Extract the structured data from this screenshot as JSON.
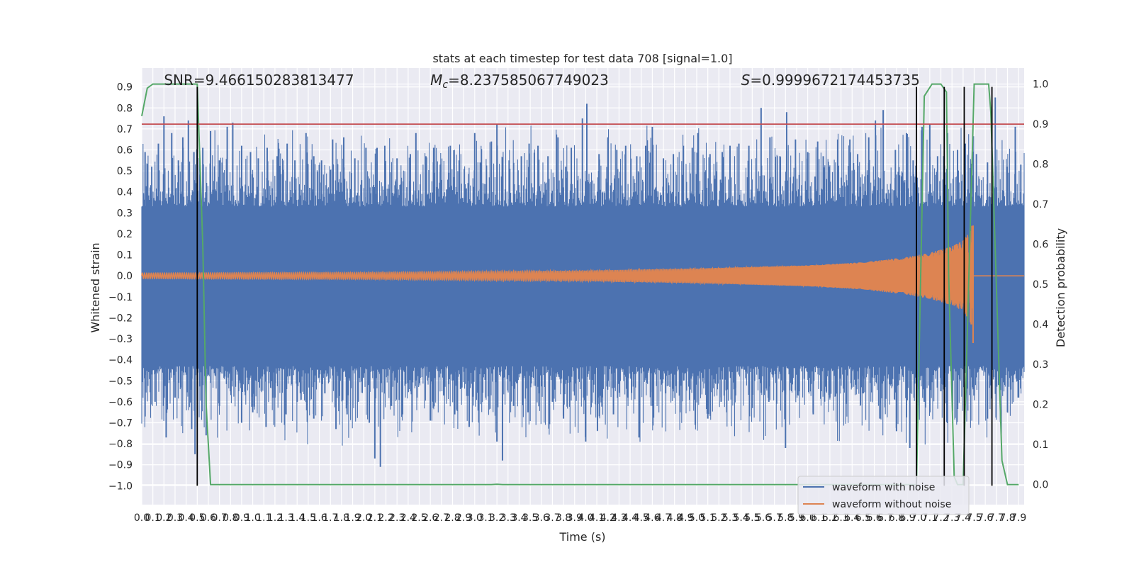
{
  "chart_data": {
    "type": "line",
    "title": "stats at each timestep for test data 708 [signal=1.0]",
    "xlabel": "Time (s)",
    "ylabel": "Whitened strain",
    "y2label": "Detection probability",
    "xlim": [
      0.0,
      7.95
    ],
    "ylim": [
      -1.09,
      0.99
    ],
    "y2lim": [
      -0.05,
      1.04
    ],
    "x_ticks": [
      0.0,
      0.1,
      0.2,
      0.3,
      0.4,
      0.5,
      0.6,
      0.7,
      0.8,
      0.9,
      1.0,
      1.1,
      1.2,
      1.3,
      1.4,
      1.5,
      1.6,
      1.7,
      1.8,
      1.9,
      2.0,
      2.1,
      2.2,
      2.3,
      2.4,
      2.5,
      2.6,
      2.7,
      2.8,
      2.9,
      3.0,
      3.1,
      3.2,
      3.3,
      3.4,
      3.5,
      3.6,
      3.7,
      3.8,
      3.9,
      4.0,
      4.1,
      4.2,
      4.3,
      4.4,
      4.5,
      4.6,
      4.7,
      4.8,
      4.9,
      5.0,
      5.1,
      5.2,
      5.3,
      5.4,
      5.5,
      5.6,
      5.7,
      5.8,
      5.9,
      6.0,
      6.1,
      6.2,
      6.3,
      6.4,
      6.5,
      6.6,
      6.7,
      6.8,
      6.9,
      7.0,
      7.1,
      7.2,
      7.3,
      7.4,
      7.5,
      7.6,
      7.7,
      7.8,
      7.9
    ],
    "x_tick_labels": [
      "0.0",
      "0.1",
      "0.2",
      "0.3",
      "0.4",
      "0.5",
      "0.6",
      "0.7",
      "0.8",
      "0.9",
      "1.0",
      "1.1",
      "1.2",
      "1.3",
      "1.4",
      "1.5",
      "1.6",
      "1.7",
      "1.8",
      "1.9",
      "2.0",
      "2.1",
      "2.2",
      "2.3",
      "2.4",
      "2.5",
      "2.6",
      "2.7",
      "2.8",
      "2.9",
      "3.0",
      "3.1",
      "3.2",
      "3.3",
      "3.4",
      "3.5",
      "3.6",
      "3.7",
      "3.8",
      "3.9",
      "4.0",
      "4.1",
      "4.2",
      "4.3",
      "4.4",
      "4.5",
      "4.6",
      "4.7",
      "4.8",
      "4.9",
      "5.0",
      "5.1",
      "5.2",
      "5.3",
      "5.4",
      "5.5",
      "5.6",
      "5.7",
      "5.8",
      "5.9",
      "6.0",
      "6.1",
      "6.2",
      "6.3",
      "6.4",
      "6.5",
      "6.6",
      "6.7",
      "6.8",
      "6.9",
      "7.0",
      "7.1",
      "7.2",
      "7.3",
      "7.4",
      "7.5",
      "7.6",
      "7.7",
      "7.8",
      "7.9"
    ],
    "y_ticks": [
      0.9,
      0.8,
      0.7,
      0.6,
      0.5,
      0.4,
      0.3,
      0.2,
      0.1,
      0.0,
      -0.1,
      -0.2,
      -0.3,
      -0.4,
      -0.5,
      -0.6,
      -0.7,
      -0.8,
      -0.9,
      -1.0
    ],
    "y_tick_labels": [
      "0.9",
      "0.8",
      "0.7",
      "0.6",
      "0.5",
      "0.4",
      "0.3",
      "0.2",
      "0.1",
      "0.0",
      "−0.1",
      "−0.2",
      "−0.3",
      "−0.4",
      "−0.5",
      "−0.6",
      "−0.7",
      "−0.8",
      "−0.9",
      "−1.0"
    ],
    "y2_ticks": [
      1.0,
      0.9,
      0.8,
      0.7,
      0.6,
      0.5,
      0.4,
      0.3,
      0.2,
      0.1,
      0.0
    ],
    "y2_tick_labels": [
      "1.0",
      "0.9",
      "0.8",
      "0.7",
      "0.6",
      "0.5",
      "0.4",
      "0.3",
      "0.2",
      "0.1",
      "0.0"
    ],
    "grid": true,
    "legend_position": "bottom-right",
    "annotations": [
      {
        "prefix": "SNR",
        "text": "=9.466150283813477",
        "x": 0.2,
        "y": 0.93
      },
      {
        "prefix": "M",
        "sub": "c",
        "text": "=8.237585067749023",
        "x": 2.6,
        "y": 0.93
      },
      {
        "prefix": "S",
        "text": "=0.9999672174453735",
        "x": 5.4,
        "y": 0.93
      }
    ],
    "series": [
      {
        "name": "waveform with noise",
        "color": "#4c72b0",
        "axis": "left",
        "band": [
          -0.43,
          0.33
        ],
        "spikes_up": [
          [
            0.03,
            0.59
          ],
          [
            0.09,
            0.52
          ],
          [
            0.15,
            0.63
          ],
          [
            0.2,
            0.76
          ],
          [
            0.27,
            0.68
          ],
          [
            0.33,
            0.55
          ],
          [
            0.37,
            0.66
          ],
          [
            0.42,
            0.74
          ],
          [
            0.47,
            0.59
          ],
          [
            0.55,
            0.61
          ],
          [
            0.62,
            0.69
          ],
          [
            0.7,
            0.55
          ],
          [
            0.77,
            0.71
          ],
          [
            0.82,
            0.73
          ],
          [
            0.9,
            0.62
          ],
          [
            0.98,
            0.59
          ],
          [
            1.05,
            0.56
          ],
          [
            1.13,
            0.61
          ],
          [
            1.22,
            0.57
          ],
          [
            1.31,
            0.63
          ],
          [
            1.38,
            0.55
          ],
          [
            1.48,
            0.68
          ],
          [
            1.55,
            0.57
          ],
          [
            1.62,
            0.55
          ],
          [
            1.72,
            0.65
          ],
          [
            1.82,
            0.66
          ],
          [
            1.92,
            0.56
          ],
          [
            2.02,
            0.61
          ],
          [
            2.12,
            0.61
          ],
          [
            2.19,
            0.62
          ],
          [
            2.3,
            0.56
          ],
          [
            2.42,
            0.58
          ],
          [
            2.47,
            0.68
          ],
          [
            2.56,
            0.57
          ],
          [
            2.63,
            0.61
          ],
          [
            2.69,
            0.53
          ],
          [
            2.78,
            0.62
          ],
          [
            2.86,
            0.55
          ],
          [
            3.0,
            0.68
          ],
          [
            3.05,
            0.54
          ],
          [
            3.15,
            0.64
          ],
          [
            3.2,
            0.72
          ],
          [
            3.31,
            0.55
          ],
          [
            3.42,
            0.57
          ],
          [
            3.49,
            0.63
          ],
          [
            3.57,
            0.62
          ],
          [
            3.66,
            0.57
          ],
          [
            3.75,
            0.66
          ],
          [
            3.82,
            0.52
          ],
          [
            3.87,
            0.61
          ],
          [
            3.97,
            0.75
          ],
          [
            4.01,
            0.82
          ],
          [
            4.12,
            0.58
          ],
          [
            4.2,
            0.66
          ],
          [
            4.28,
            0.6
          ],
          [
            4.36,
            0.62
          ],
          [
            4.46,
            0.57
          ],
          [
            4.54,
            0.62
          ],
          [
            4.6,
            0.71
          ],
          [
            4.7,
            0.56
          ],
          [
            4.79,
            0.58
          ],
          [
            4.88,
            0.62
          ],
          [
            4.96,
            0.61
          ],
          [
            5.01,
            0.68
          ],
          [
            5.12,
            0.58
          ],
          [
            5.23,
            0.59
          ],
          [
            5.3,
            0.62
          ],
          [
            5.38,
            0.63
          ],
          [
            5.47,
            0.62
          ],
          [
            5.58,
            0.8
          ],
          [
            5.66,
            0.66
          ],
          [
            5.75,
            0.57
          ],
          [
            5.81,
            0.78
          ],
          [
            5.89,
            0.65
          ],
          [
            6.0,
            0.59
          ],
          [
            6.09,
            0.64
          ],
          [
            6.14,
            0.57
          ],
          [
            6.27,
            0.65
          ],
          [
            6.38,
            0.65
          ],
          [
            6.45,
            0.58
          ],
          [
            6.55,
            0.66
          ],
          [
            6.61,
            0.74
          ],
          [
            6.68,
            0.79
          ],
          [
            6.79,
            0.6
          ],
          [
            6.89,
            0.68
          ],
          [
            6.95,
            0.55
          ],
          [
            7.03,
            0.71
          ],
          [
            7.1,
            0.72
          ],
          [
            7.17,
            0.57
          ],
          [
            7.26,
            0.68
          ],
          [
            7.35,
            0.6
          ],
          [
            7.42,
            0.63
          ],
          [
            7.52,
            0.58
          ],
          [
            7.62,
            0.54
          ],
          [
            7.69,
            0.85
          ],
          [
            7.8,
            0.52
          ],
          [
            7.87,
            0.71
          ],
          [
            7.92,
            0.53
          ]
        ],
        "spikes_down": [
          [
            0.03,
            -0.67
          ],
          [
            0.12,
            -0.6
          ],
          [
            0.22,
            -0.77
          ],
          [
            0.3,
            -0.58
          ],
          [
            0.45,
            -0.73
          ],
          [
            0.48,
            -0.85
          ],
          [
            0.58,
            -0.76
          ],
          [
            0.7,
            -0.62
          ],
          [
            0.8,
            -0.55
          ],
          [
            0.9,
            -0.7
          ],
          [
            1.0,
            -0.65
          ],
          [
            1.12,
            -0.72
          ],
          [
            1.2,
            -0.58
          ],
          [
            1.3,
            -0.66
          ],
          [
            1.4,
            -0.6
          ],
          [
            1.55,
            -0.68
          ],
          [
            1.65,
            -0.56
          ],
          [
            1.75,
            -0.73
          ],
          [
            1.85,
            -0.66
          ],
          [
            1.95,
            -0.6
          ],
          [
            2.05,
            -0.7
          ],
          [
            2.1,
            -0.87
          ],
          [
            2.15,
            -0.91
          ],
          [
            2.25,
            -0.62
          ],
          [
            2.35,
            -0.66
          ],
          [
            2.48,
            -0.58
          ],
          [
            2.6,
            -0.69
          ],
          [
            2.72,
            -0.57
          ],
          [
            2.82,
            -0.66
          ],
          [
            2.95,
            -0.72
          ],
          [
            3.1,
            -0.58
          ],
          [
            3.2,
            -0.79
          ],
          [
            3.25,
            -0.88
          ],
          [
            3.35,
            -0.62
          ],
          [
            3.48,
            -0.65
          ],
          [
            3.58,
            -0.56
          ],
          [
            3.7,
            -0.6
          ],
          [
            3.8,
            -0.68
          ],
          [
            3.9,
            -0.57
          ],
          [
            4.0,
            -0.79
          ],
          [
            4.12,
            -0.61
          ],
          [
            4.25,
            -0.66
          ],
          [
            4.38,
            -0.58
          ],
          [
            4.48,
            -0.77
          ],
          [
            4.6,
            -0.62
          ],
          [
            4.72,
            -0.56
          ],
          [
            4.85,
            -0.65
          ],
          [
            4.98,
            -0.59
          ],
          [
            5.1,
            -0.68
          ],
          [
            5.22,
            -0.6
          ],
          [
            5.35,
            -0.57
          ],
          [
            5.5,
            -0.63
          ],
          [
            5.65,
            -0.6
          ],
          [
            5.8,
            -0.82
          ],
          [
            5.92,
            -0.55
          ],
          [
            6.05,
            -0.66
          ],
          [
            6.2,
            -0.58
          ],
          [
            6.35,
            -0.61
          ],
          [
            6.5,
            -0.56
          ],
          [
            6.65,
            -0.68
          ],
          [
            6.8,
            -0.74
          ],
          [
            6.92,
            -0.82
          ],
          [
            7.05,
            -0.6
          ],
          [
            7.2,
            -0.55
          ],
          [
            7.35,
            -0.62
          ],
          [
            7.5,
            -0.57
          ],
          [
            7.62,
            -0.68
          ],
          [
            7.72,
            -0.52
          ],
          [
            7.8,
            -0.65
          ],
          [
            7.9,
            -0.58
          ]
        ]
      },
      {
        "name": "waveform without noise",
        "color": "#dd8452",
        "axis": "left",
        "envelope": [
          [
            0.0,
            0.013
          ],
          [
            1.0,
            0.015
          ],
          [
            2.0,
            0.016
          ],
          [
            3.0,
            0.02
          ],
          [
            4.0,
            0.025
          ],
          [
            5.0,
            0.035
          ],
          [
            6.0,
            0.05
          ],
          [
            6.5,
            0.065
          ],
          [
            6.9,
            0.09
          ],
          [
            7.1,
            0.11
          ],
          [
            7.3,
            0.14
          ],
          [
            7.4,
            0.17
          ],
          [
            7.45,
            0.21
          ],
          [
            7.48,
            0.24
          ],
          [
            7.49,
            -0.32
          ],
          [
            7.5,
            0.0
          ],
          [
            7.95,
            0.0
          ]
        ]
      },
      {
        "name": "",
        "color": "#55a868",
        "axis": "right",
        "points": [
          [
            0.0,
            0.92
          ],
          [
            0.05,
            0.99
          ],
          [
            0.1,
            1.0
          ],
          [
            0.5,
            1.0
          ],
          [
            0.55,
            0.6
          ],
          [
            0.58,
            0.2
          ],
          [
            0.62,
            0.0
          ],
          [
            3.15,
            0.0
          ],
          [
            3.2,
            0.001
          ],
          [
            3.25,
            0.0
          ],
          [
            6.98,
            0.0
          ],
          [
            7.05,
            0.97
          ],
          [
            7.12,
            1.0
          ],
          [
            7.2,
            1.0
          ],
          [
            7.25,
            0.98
          ],
          [
            7.27,
            0.52
          ],
          [
            7.32,
            0.02
          ],
          [
            7.35,
            0.0
          ],
          [
            7.4,
            0.0
          ],
          [
            7.5,
            1.0
          ],
          [
            7.63,
            1.0
          ],
          [
            7.65,
            0.93
          ],
          [
            7.75,
            0.06
          ],
          [
            7.8,
            0.0
          ],
          [
            7.9,
            0.0
          ]
        ]
      }
    ],
    "threshold_line": {
      "y": 0.9,
      "axis": "right",
      "color": "#c44e52"
    },
    "vertical_lines": {
      "x": [
        0.5,
        6.98,
        7.23,
        7.41,
        7.66
      ],
      "y_from": -1.0,
      "y_to": 0.9,
      "color": "#000000"
    }
  }
}
